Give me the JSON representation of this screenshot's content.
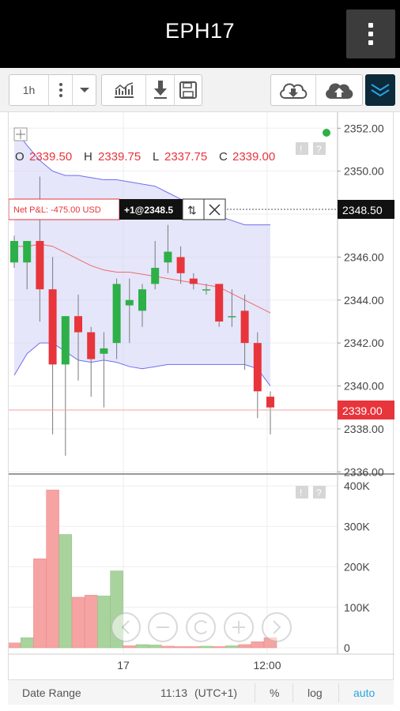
{
  "app": {
    "title": "EPH17"
  },
  "toolbar": {
    "interval_label": "1h",
    "icons": [
      "more-vert-icon",
      "chevron-down-icon",
      "studies-icon",
      "download-icon",
      "save-icon",
      "cloud-download-icon",
      "cloud-upload-icon",
      "collapse-icon"
    ]
  },
  "ohlc": {
    "o_label": "O",
    "o_value": "2339.50",
    "h_label": "H",
    "h_value": "2339.75",
    "l_label": "L",
    "l_value": "2337.75",
    "c_label": "C",
    "c_value": "2339.00"
  },
  "position": {
    "pl_label": "Net P&L: -475.00 USD",
    "qty_label": "+1@2348.5",
    "price_tag": "2348.50",
    "last_price_tag": "2339.00"
  },
  "bottom_bar": {
    "date_range": "Date Range",
    "time": "11:13",
    "timezone": "(UTC+1)",
    "percent": "%",
    "log": "log",
    "auto": "auto"
  },
  "colors": {
    "up": "#2db048",
    "down": "#e8343b",
    "vol_up": "#a9d39c",
    "vol_down": "#f5a3a3",
    "band": "#cfd1f5",
    "accent": "#2aa3e0"
  },
  "chart_data": [
    {
      "type": "candlestick",
      "y_axis_ticks": [
        "2352.00",
        "2350.00",
        "2348.00",
        "2346.00",
        "2344.00",
        "2342.00",
        "2340.00",
        "2338.00",
        "2336.00"
      ],
      "ylim": [
        2335.9,
        2352.6
      ],
      "x_ticks": [
        "17",
        "12:00"
      ],
      "candles": [
        {
          "o": 2345.75,
          "h": 2347.0,
          "l": 2345.5,
          "c": 2346.75
        },
        {
          "o": 2345.75,
          "h": 2346.75,
          "l": 2344.5,
          "c": 2346.75
        },
        {
          "o": 2346.75,
          "h": 2349.75,
          "l": 2343.0,
          "c": 2344.5
        },
        {
          "o": 2344.5,
          "h": 2346.0,
          "l": 2337.75,
          "c": 2341.0
        },
        {
          "o": 2341.0,
          "h": 2343.25,
          "l": 2336.75,
          "c": 2343.25
        },
        {
          "o": 2343.25,
          "h": 2344.25,
          "l": 2340.25,
          "c": 2342.5
        },
        {
          "o": 2342.5,
          "h": 2342.75,
          "l": 2339.5,
          "c": 2341.25
        },
        {
          "o": 2341.5,
          "h": 2342.5,
          "l": 2339.0,
          "c": 2341.75
        },
        {
          "o": 2342.0,
          "h": 2345.0,
          "l": 2341.25,
          "c": 2344.75
        },
        {
          "o": 2343.75,
          "h": 2345.0,
          "l": 2342.0,
          "c": 2344.0
        },
        {
          "o": 2343.5,
          "h": 2344.75,
          "l": 2342.75,
          "c": 2344.5
        },
        {
          "o": 2344.75,
          "h": 2346.75,
          "l": 2344.5,
          "c": 2345.5
        },
        {
          "o": 2345.75,
          "h": 2347.5,
          "l": 2345.25,
          "c": 2346.25
        },
        {
          "o": 2346.0,
          "h": 2346.5,
          "l": 2344.75,
          "c": 2345.25
        },
        {
          "o": 2345.0,
          "h": 2345.25,
          "l": 2344.5,
          "c": 2344.75
        },
        {
          "o": 2344.5,
          "h": 2344.75,
          "l": 2344.25,
          "c": 2344.5
        },
        {
          "o": 2344.75,
          "h": 2344.75,
          "l": 2342.75,
          "c": 2343.0
        },
        {
          "o": 2343.25,
          "h": 2344.5,
          "l": 2342.75,
          "c": 2343.25
        },
        {
          "o": 2343.5,
          "h": 2344.25,
          "l": 2340.75,
          "c": 2342.0
        },
        {
          "o": 2342.0,
          "h": 2342.5,
          "l": 2338.5,
          "c": 2339.75
        },
        {
          "o": 2339.5,
          "h": 2339.75,
          "l": 2337.75,
          "c": 2339.0
        }
      ],
      "moving_average": [
        2346.5,
        2346.5,
        2346.6,
        2346.5,
        2346.2,
        2345.9,
        2345.6,
        2345.4,
        2345.3,
        2345.3,
        2345.2,
        2345.1,
        2345.0,
        2344.9,
        2344.8,
        2344.7,
        2344.6,
        2344.3,
        2344.0,
        2343.7,
        2343.4
      ],
      "band_upper": [
        2352.0,
        2351.2,
        2350.5,
        2350.0,
        2349.8,
        2349.8,
        2349.7,
        2349.6,
        2349.6,
        2349.5,
        2349.4,
        2349.3,
        2349.0,
        2348.7,
        2348.4,
        2348.1,
        2347.9,
        2347.7,
        2347.5,
        2347.5,
        2347.5
      ],
      "band_lower": [
        2340.5,
        2341.5,
        2342.0,
        2342.0,
        2341.6,
        2341.2,
        2341.1,
        2341.2,
        2341.1,
        2340.9,
        2340.8,
        2340.9,
        2341.0,
        2341.0,
        2341.0,
        2341.0,
        2341.0,
        2341.0,
        2341.0,
        2340.8,
        2340.0
      ]
    },
    {
      "type": "bar",
      "y_axis_ticks": [
        "400K",
        "300K",
        "200K",
        "100K",
        "0"
      ],
      "ylim": [
        0,
        400000
      ],
      "values": [
        12000,
        25000,
        220000,
        390000,
        280000,
        125000,
        130000,
        128000,
        190000,
        5000,
        8000,
        7000,
        4000,
        3000,
        3000,
        4000,
        3000,
        5000,
        8000,
        15000,
        25000
      ],
      "direction": [
        "down",
        "up",
        "down",
        "down",
        "up",
        "down",
        "down",
        "up",
        "up",
        "down",
        "up",
        "up",
        "down",
        "down",
        "down",
        "up",
        "down",
        "up",
        "down",
        "down",
        "down"
      ]
    }
  ]
}
